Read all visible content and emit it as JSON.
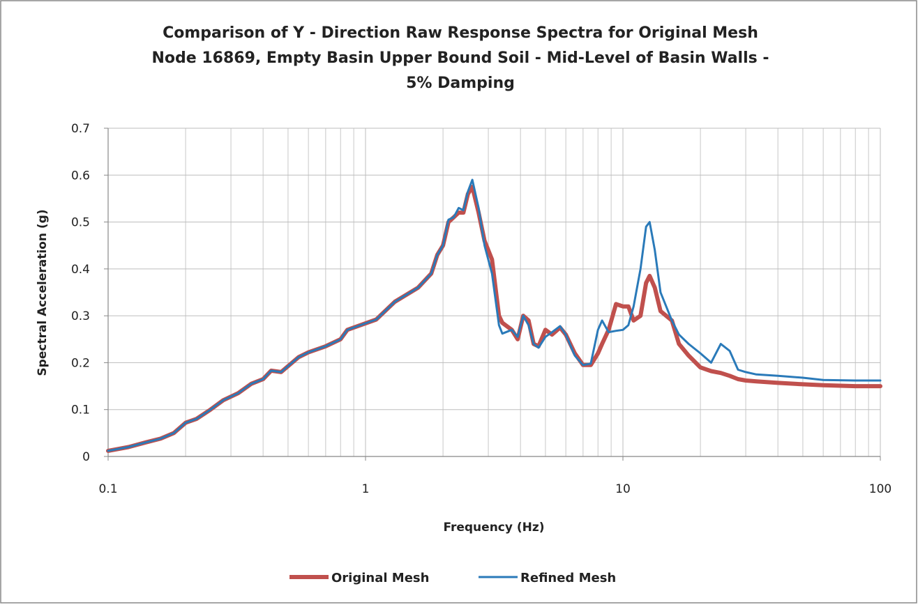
{
  "chart_data": {
    "type": "line",
    "title": [
      "Comparison of Y - Direction Raw Response Spectra for Original Mesh",
      "Node 16869, Empty Basin Upper Bound Soil - Mid-Level of Basin Walls  -",
      "5% Damping"
    ],
    "x_label": "Frequency (Hz)",
    "y_label": "Spectral Acceleration (g)",
    "xscale": "log",
    "grid": true,
    "legend": "bottom",
    "xlim": [
      0.1,
      100
    ],
    "xticks": [
      0.1,
      1,
      10,
      100
    ],
    "xminorticks": [
      0.2,
      0.3,
      0.4,
      0.5,
      0.6,
      0.7,
      0.8,
      0.9,
      2,
      3,
      4,
      5,
      6,
      7,
      8,
      9,
      20,
      30,
      40,
      50,
      60,
      70,
      80,
      90
    ],
    "ylim": [
      0,
      0.7
    ],
    "yticks": [
      0,
      0.1,
      0.2,
      0.3,
      0.4,
      0.5,
      0.6,
      0.7
    ],
    "x": [
      0.1,
      0.12,
      0.14,
      0.16,
      0.18,
      0.2,
      0.22,
      0.25,
      0.28,
      0.32,
      0.36,
      0.4,
      0.43,
      0.47,
      0.55,
      0.6,
      0.7,
      0.8,
      0.85,
      1.1,
      1.3,
      1.6,
      1.8,
      1.9,
      2.0,
      2.1,
      2.2,
      2.3,
      2.4,
      2.5,
      2.6,
      2.75,
      2.9,
      3.1,
      3.3,
      3.4,
      3.7,
      3.9,
      4.1,
      4.3,
      4.5,
      4.7,
      5.0,
      5.3,
      5.7,
      6.0,
      6.5,
      7.0,
      7.5,
      8.0,
      8.3,
      8.8,
      9.4,
      10.0,
      10.5,
      11.0,
      11.7,
      12.3,
      12.7,
      13.3,
      14.0,
      15.5,
      16.5,
      18,
      20,
      22,
      24,
      26,
      28,
      30,
      33,
      40,
      50,
      60,
      80,
      100
    ],
    "series": [
      {
        "name": "Original Mesh",
        "color": "#c0504d",
        "width": 6,
        "values": [
          0.012,
          0.02,
          0.03,
          0.038,
          0.05,
          0.072,
          0.08,
          0.1,
          0.12,
          0.135,
          0.155,
          0.165,
          0.183,
          0.18,
          0.212,
          0.222,
          0.235,
          0.25,
          0.27,
          0.292,
          0.33,
          0.36,
          0.39,
          0.43,
          0.45,
          0.5,
          0.51,
          0.52,
          0.52,
          0.56,
          0.575,
          0.52,
          0.46,
          0.42,
          0.3,
          0.285,
          0.27,
          0.25,
          0.3,
          0.29,
          0.24,
          0.235,
          0.27,
          0.26,
          0.275,
          0.26,
          0.22,
          0.195,
          0.195,
          0.22,
          0.24,
          0.27,
          0.325,
          0.32,
          0.32,
          0.29,
          0.3,
          0.37,
          0.385,
          0.36,
          0.31,
          0.29,
          0.24,
          0.215,
          0.19,
          0.182,
          0.178,
          0.172,
          0.165,
          0.162,
          0.16,
          0.157,
          0.154,
          0.152,
          0.15,
          0.15
        ]
      },
      {
        "name": "Refined Mesh",
        "color": "#2a7ab9",
        "width": 3,
        "values": [
          0.012,
          0.02,
          0.03,
          0.038,
          0.05,
          0.072,
          0.08,
          0.1,
          0.12,
          0.135,
          0.155,
          0.165,
          0.183,
          0.18,
          0.212,
          0.222,
          0.235,
          0.25,
          0.27,
          0.292,
          0.33,
          0.36,
          0.39,
          0.43,
          0.45,
          0.505,
          0.51,
          0.53,
          0.525,
          0.565,
          0.59,
          0.53,
          0.45,
          0.39,
          0.28,
          0.262,
          0.27,
          0.255,
          0.3,
          0.28,
          0.24,
          0.232,
          0.255,
          0.265,
          0.278,
          0.26,
          0.215,
          0.195,
          0.198,
          0.27,
          0.29,
          0.265,
          0.268,
          0.27,
          0.28,
          0.32,
          0.4,
          0.49,
          0.5,
          0.44,
          0.35,
          0.29,
          0.26,
          0.24,
          0.22,
          0.2,
          0.24,
          0.225,
          0.185,
          0.18,
          0.175,
          0.172,
          0.168,
          0.163,
          0.162,
          0.162
        ]
      }
    ]
  }
}
